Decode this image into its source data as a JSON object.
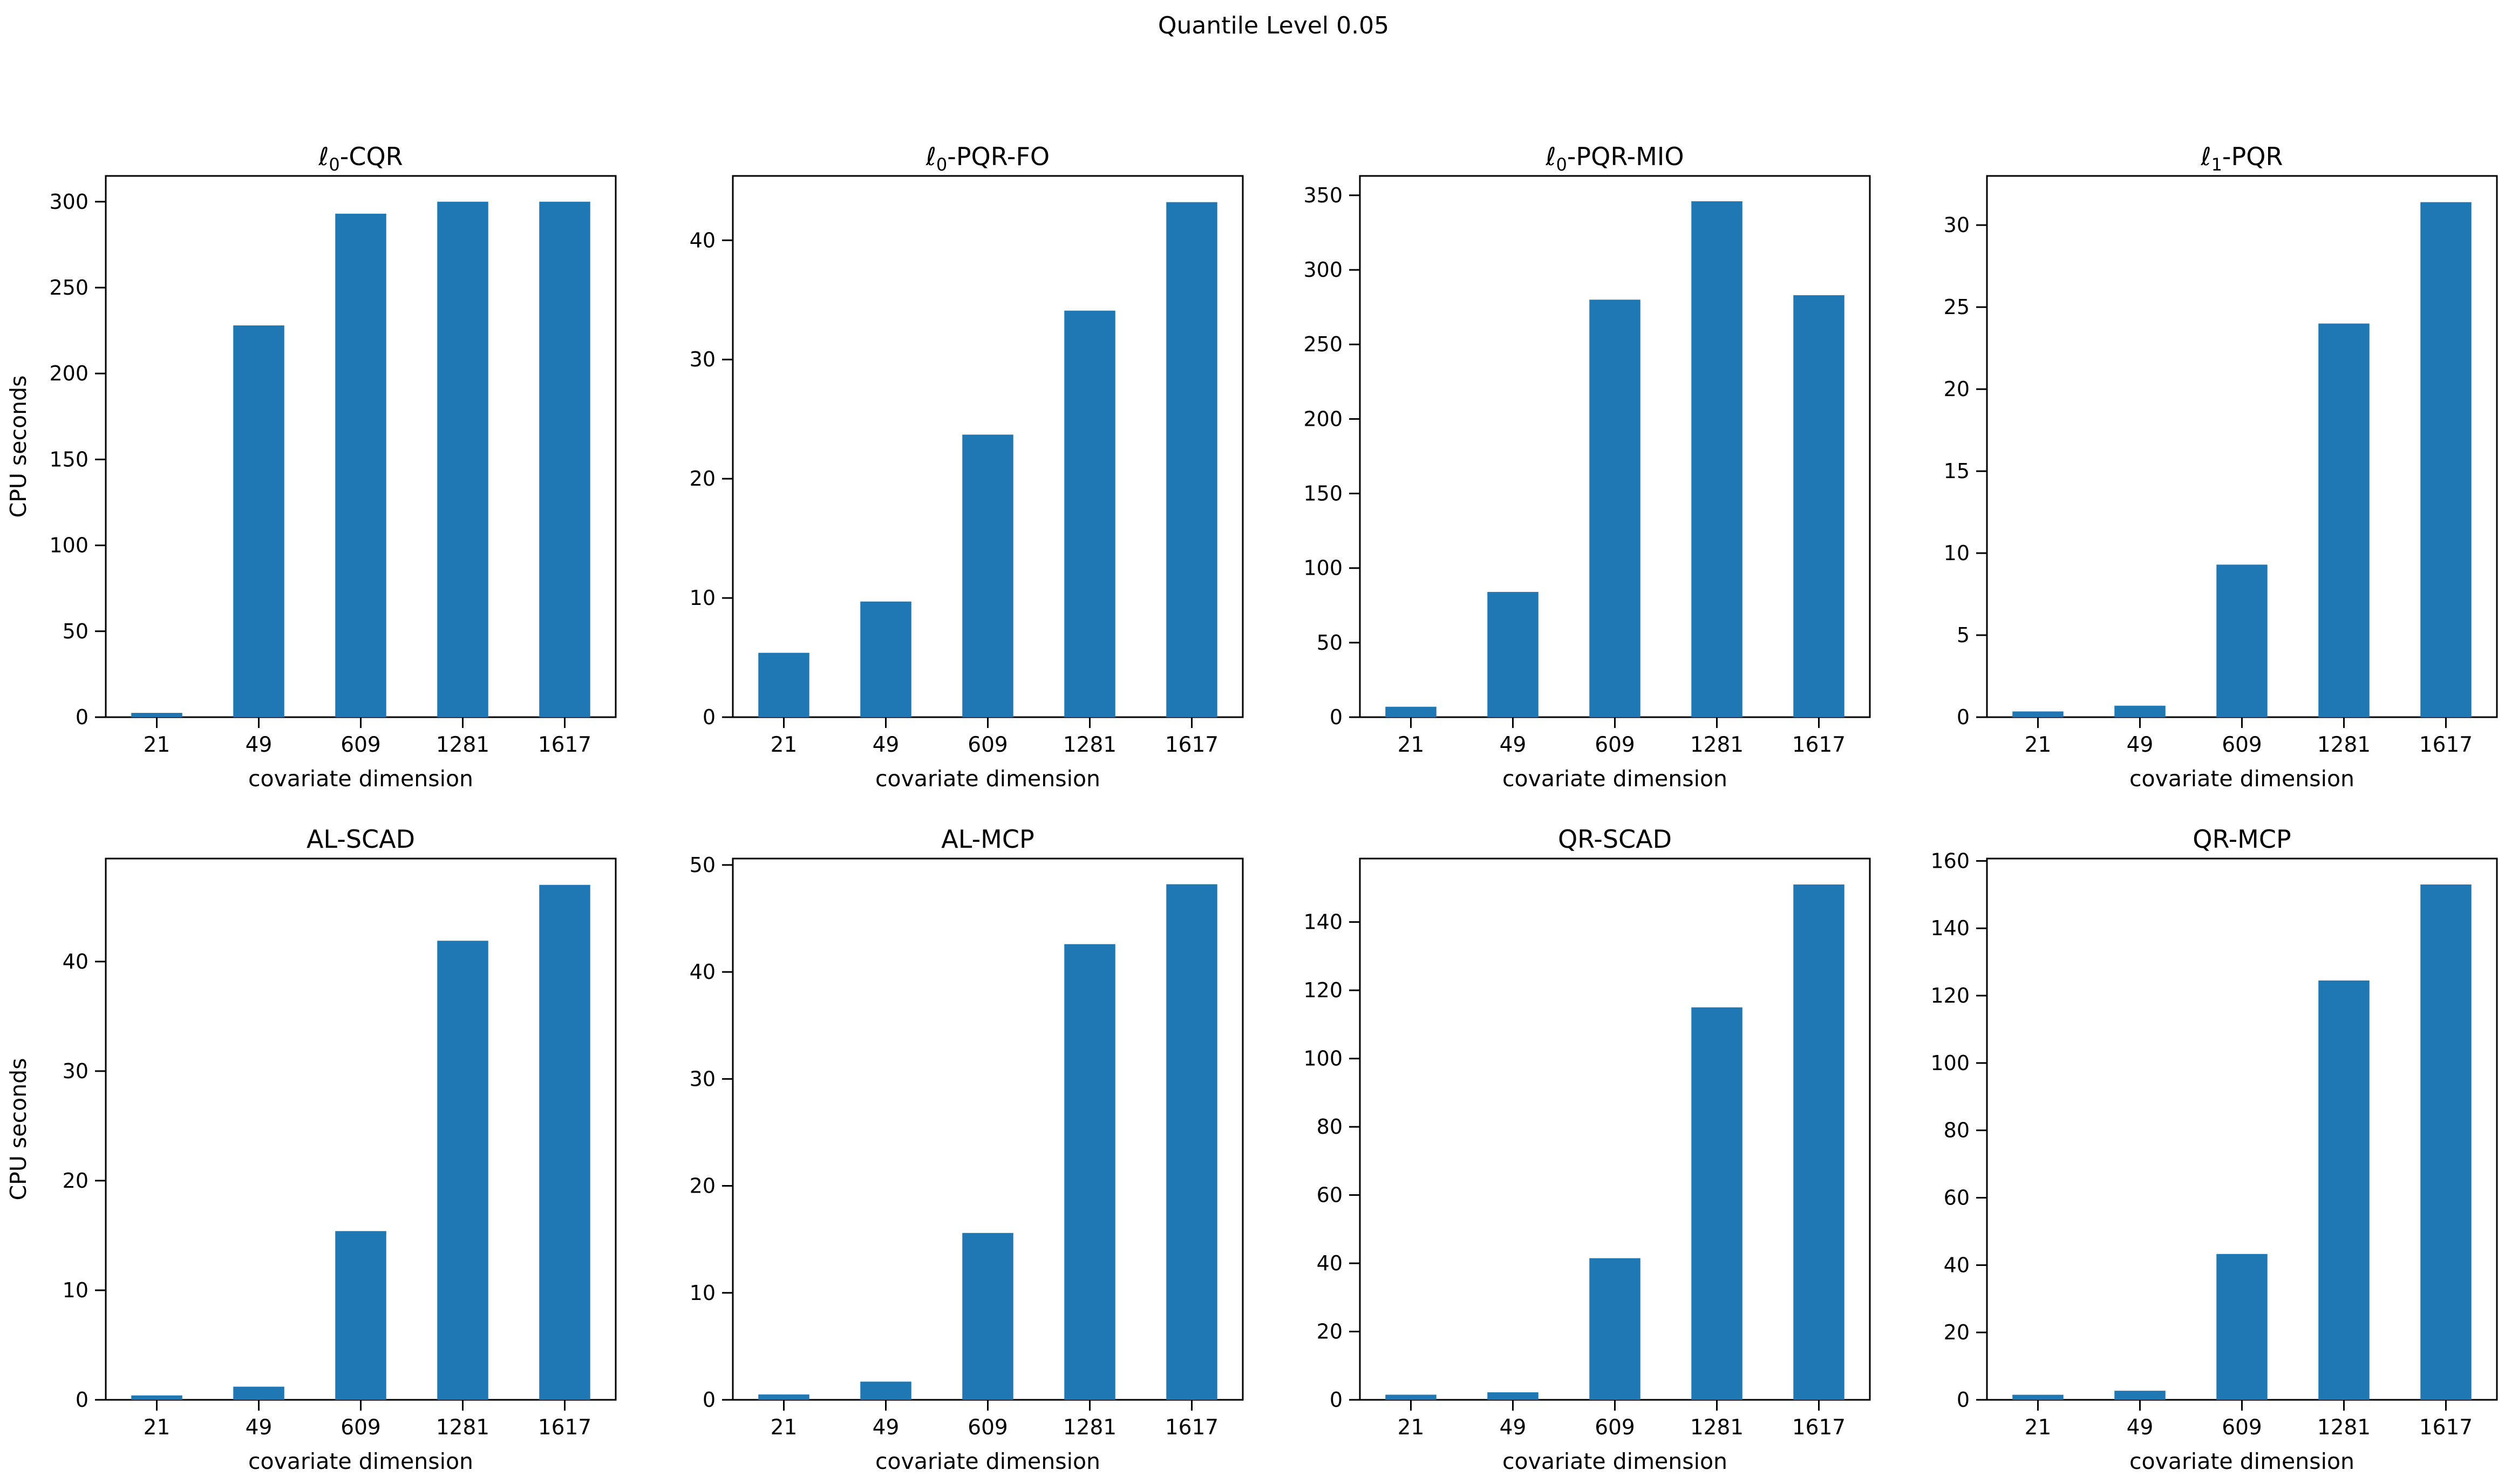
{
  "figure": {
    "suptitle": "Quantile Level 0.05",
    "bar_color": "#1f77b4",
    "axis_color": "#000000",
    "background": "#ffffff",
    "xlabel": "covariate dimension",
    "ylabel": "CPU seconds"
  },
  "chart_data": [
    {
      "type": "bar",
      "title": "ℓ0-CQR",
      "title_parts": {
        "pre": "ℓ",
        "sub": "0",
        "post": "-CQR"
      },
      "categories": [
        "21",
        "49",
        "609",
        "1281",
        "1617"
      ],
      "values": [
        2.5,
        228,
        293,
        300,
        300
      ],
      "yticks": [
        0,
        50,
        100,
        150,
        200,
        250,
        300
      ],
      "ylim": [
        0,
        315
      ],
      "xlabel": "covariate dimension",
      "ylabel": "CPU seconds",
      "grid": false,
      "legend": null
    },
    {
      "type": "bar",
      "title": "ℓ0-PQR-FO",
      "title_parts": {
        "pre": "ℓ",
        "sub": "0",
        "post": "-PQR-FO"
      },
      "categories": [
        "21",
        "49",
        "609",
        "1281",
        "1617"
      ],
      "values": [
        5.4,
        9.7,
        23.7,
        34.1,
        43.2
      ],
      "yticks": [
        0,
        10,
        20,
        30,
        40
      ],
      "ylim": [
        0,
        45.4
      ],
      "xlabel": "covariate dimension",
      "ylabel": "",
      "grid": false,
      "legend": null
    },
    {
      "type": "bar",
      "title": "ℓ0-PQR-MIO",
      "title_parts": {
        "pre": "ℓ",
        "sub": "0",
        "post": "-PQR-MIO"
      },
      "categories": [
        "21",
        "49",
        "609",
        "1281",
        "1617"
      ],
      "values": [
        7,
        84,
        280,
        346,
        283
      ],
      "yticks": [
        0,
        50,
        100,
        150,
        200,
        250,
        300,
        350
      ],
      "ylim": [
        0,
        363
      ],
      "xlabel": "covariate dimension",
      "ylabel": "",
      "grid": false,
      "legend": null
    },
    {
      "type": "bar",
      "title": "ℓ1-PQR",
      "title_parts": {
        "pre": "ℓ",
        "sub": "1",
        "post": "-PQR"
      },
      "categories": [
        "21",
        "49",
        "609",
        "1281",
        "1617"
      ],
      "values": [
        0.35,
        0.7,
        9.3,
        24,
        31.4
      ],
      "yticks": [
        0,
        5,
        10,
        15,
        20,
        25,
        30
      ],
      "ylim": [
        0,
        33
      ],
      "xlabel": "covariate dimension",
      "ylabel": "",
      "grid": false,
      "legend": null
    },
    {
      "type": "bar",
      "title": "AL-SCAD",
      "title_parts": {
        "pre": "AL-SCAD",
        "sub": "",
        "post": ""
      },
      "categories": [
        "21",
        "49",
        "609",
        "1281",
        "1617"
      ],
      "values": [
        0.4,
        1.2,
        15.4,
        41.9,
        47
      ],
      "yticks": [
        0,
        10,
        20,
        30,
        40
      ],
      "ylim": [
        0,
        49.4
      ],
      "xlabel": "covariate dimension",
      "ylabel": "CPU seconds",
      "grid": false,
      "legend": null
    },
    {
      "type": "bar",
      "title": "AL-MCP",
      "title_parts": {
        "pre": "AL-MCP",
        "sub": "",
        "post": ""
      },
      "categories": [
        "21",
        "49",
        "609",
        "1281",
        "1617"
      ],
      "values": [
        0.5,
        1.7,
        15.6,
        42.6,
        48.2
      ],
      "yticks": [
        0,
        10,
        20,
        30,
        40,
        50
      ],
      "ylim": [
        0,
        50.6
      ],
      "xlabel": "covariate dimension",
      "ylabel": "",
      "grid": false,
      "legend": null
    },
    {
      "type": "bar",
      "title": "QR-SCAD",
      "title_parts": {
        "pre": "QR-SCAD",
        "sub": "",
        "post": ""
      },
      "categories": [
        "21",
        "49",
        "609",
        "1281",
        "1617"
      ],
      "values": [
        1.5,
        2.2,
        41.5,
        115,
        151
      ],
      "yticks": [
        0,
        20,
        40,
        60,
        80,
        100,
        120,
        140
      ],
      "ylim": [
        0,
        158.6
      ],
      "xlabel": "covariate dimension",
      "ylabel": "",
      "grid": false,
      "legend": null
    },
    {
      "type": "bar",
      "title": "QR-MCP",
      "title_parts": {
        "pre": "QR-MCP",
        "sub": "",
        "post": ""
      },
      "categories": [
        "21",
        "49",
        "609",
        "1281",
        "1617"
      ],
      "values": [
        1.5,
        2.7,
        43.3,
        124.5,
        153
      ],
      "yticks": [
        0,
        20,
        40,
        60,
        80,
        100,
        120,
        140,
        160
      ],
      "ylim": [
        0,
        160.7
      ],
      "xlabel": "covariate dimension",
      "ylabel": "",
      "grid": false,
      "legend": null
    }
  ]
}
